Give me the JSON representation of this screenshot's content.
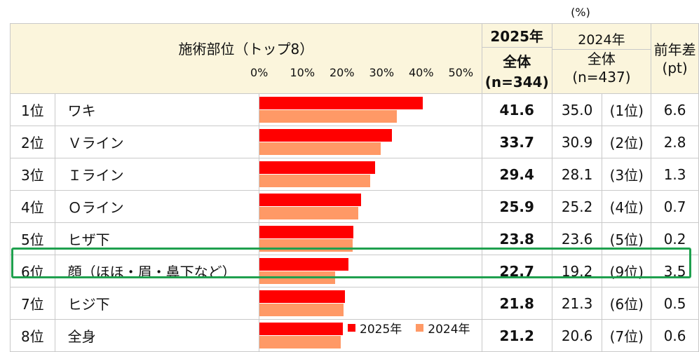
{
  "unit": "(%)",
  "header": {
    "title": "施術部位（トップ8）",
    "col_2025": "2025年",
    "col_2025_sub1": "全体",
    "col_2025_sub2": "(n=344)",
    "col_2024": "2024年",
    "col_2024_sub1": "全体",
    "col_2024_sub2": "(n=437)",
    "col_diff1": "前年差",
    "col_diff2": "(pt)"
  },
  "axis_ticks": [
    "0%",
    "10%",
    "20%",
    "30%",
    "40%",
    "50%"
  ],
  "rows": [
    {
      "rank": "1位",
      "item": "ワキ",
      "v2025": "41.6",
      "v2024": "35.0",
      "rank2024": "(1位)",
      "diff": "6.6"
    },
    {
      "rank": "2位",
      "item": "Ｖライン",
      "v2025": "33.7",
      "v2024": "30.9",
      "rank2024": "(2位)",
      "diff": "2.8"
    },
    {
      "rank": "3位",
      "item": "Ｉライン",
      "v2025": "29.4",
      "v2024": "28.1",
      "rank2024": "(3位)",
      "diff": "1.3"
    },
    {
      "rank": "4位",
      "item": "Ｏライン",
      "v2025": "25.9",
      "v2024": "25.2",
      "rank2024": "(4位)",
      "diff": "0.7"
    },
    {
      "rank": "5位",
      "item": "ヒザ下",
      "v2025": "23.8",
      "v2024": "23.6",
      "rank2024": "(5位)",
      "diff": "0.2"
    },
    {
      "rank": "6位",
      "item": "顔（ほほ・眉・鼻下など）",
      "v2025": "22.7",
      "v2024": "19.2",
      "rank2024": "(9位)",
      "diff": "3.5"
    },
    {
      "rank": "7位",
      "item": "ヒジ下",
      "v2025": "21.8",
      "v2024": "21.3",
      "rank2024": "(6位)",
      "diff": "0.5"
    },
    {
      "rank": "8位",
      "item": "全身",
      "v2025": "21.2",
      "v2024": "20.6",
      "rank2024": "(7位)",
      "diff": "0.6"
    }
  ],
  "legend": {
    "s2025": "2025年",
    "s2024": "2024年"
  },
  "chart_data": {
    "type": "bar",
    "orientation": "horizontal",
    "title": "施術部位（トップ8）",
    "categories": [
      "ワキ",
      "Ｖライン",
      "Ｉライン",
      "Ｏライン",
      "ヒザ下",
      "顔（ほほ・眉・鼻下など）",
      "ヒジ下",
      "全身"
    ],
    "series": [
      {
        "name": "2025年",
        "values": [
          41.6,
          33.7,
          29.4,
          25.9,
          23.8,
          22.7,
          21.8,
          21.2
        ],
        "color": "#ff0000"
      },
      {
        "name": "2024年",
        "values": [
          35.0,
          30.9,
          28.1,
          25.2,
          23.6,
          19.2,
          21.3,
          20.6
        ],
        "color": "#ff9966"
      }
    ],
    "xlim": [
      0,
      50
    ],
    "legend_position": "bottom-right",
    "highlighted_category": "顔（ほほ・眉・鼻下など）"
  }
}
